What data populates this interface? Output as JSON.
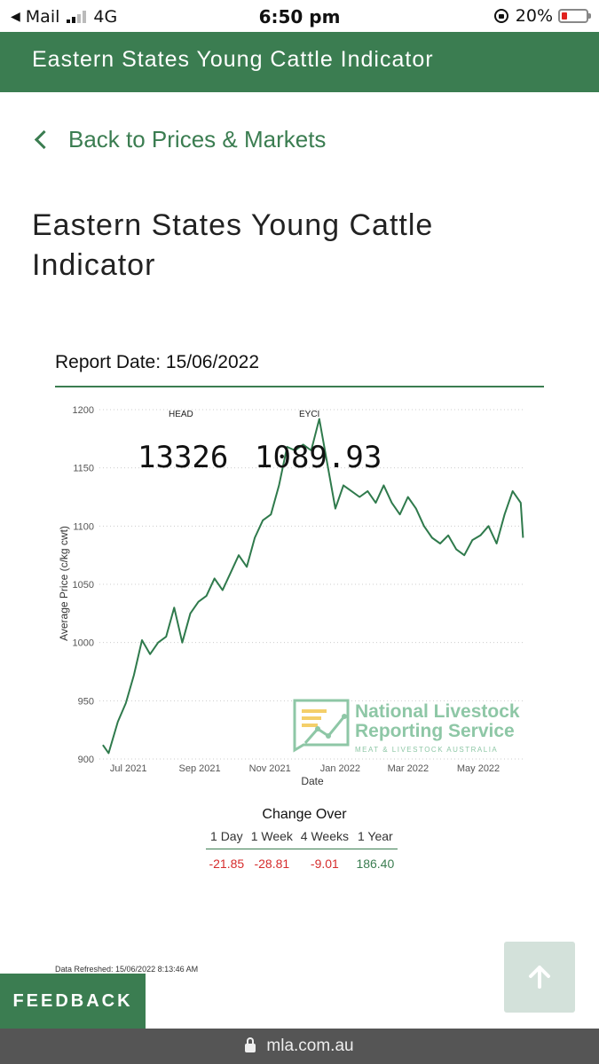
{
  "status_bar": {
    "back_app": "Mail",
    "network": "4G",
    "time": "6:50 pm",
    "battery": "20%"
  },
  "header": {
    "title": "Eastern States Young Cattle Indicator"
  },
  "nav": {
    "back_label": "Back to Prices & Markets"
  },
  "page": {
    "title": "Eastern States Young Cattle Indicator",
    "report_date": "Report Date: 15/06/2022"
  },
  "kpi": {
    "head_label": "HEAD",
    "head_value": "13326",
    "eyci_label": "EYCI",
    "eyci_value": "1089.93"
  },
  "watermark": {
    "line1": "National Livestock",
    "line2": "Reporting Service",
    "line3": "MEAT & LIVESTOCK AUSTRALIA"
  },
  "chart_data": {
    "type": "line",
    "xlabel": "Date",
    "ylabel": "Average Price (c/kg cwt)",
    "ylim": [
      900,
      1200
    ],
    "yticks": [
      900,
      950,
      1000,
      1050,
      1100,
      1150,
      1200
    ],
    "xticks": [
      "Jul 2021",
      "Sep 2021",
      "Nov 2021",
      "Jan 2022",
      "Mar 2022",
      "May 2022"
    ],
    "grid": true,
    "series": [
      {
        "x": [
          "2021-06-15",
          "2021-06-20",
          "2021-06-28",
          "2021-07-05",
          "2021-07-12",
          "2021-07-19",
          "2021-07-26",
          "2021-08-02",
          "2021-08-09",
          "2021-08-16",
          "2021-08-23",
          "2021-08-30",
          "2021-09-06",
          "2021-09-13",
          "2021-09-20",
          "2021-09-27",
          "2021-10-04",
          "2021-10-11",
          "2021-10-18",
          "2021-10-25",
          "2021-11-01",
          "2021-11-08",
          "2021-11-15",
          "2021-11-22",
          "2021-11-29",
          "2021-12-06",
          "2021-12-13",
          "2021-12-20",
          "2022-01-03",
          "2022-01-10",
          "2022-01-17",
          "2022-01-24",
          "2022-01-31",
          "2022-02-07",
          "2022-02-14",
          "2022-02-21",
          "2022-02-28",
          "2022-03-07",
          "2022-03-14",
          "2022-03-21",
          "2022-03-28",
          "2022-04-04",
          "2022-04-11",
          "2022-04-18",
          "2022-04-25",
          "2022-05-02",
          "2022-05-09",
          "2022-05-16",
          "2022-05-23",
          "2022-05-30",
          "2022-06-06",
          "2022-06-13",
          "2022-06-15"
        ],
        "values": [
          912,
          905,
          932,
          948,
          972,
          1002,
          990,
          1000,
          1005,
          1030,
          1000,
          1025,
          1035,
          1040,
          1055,
          1045,
          1060,
          1075,
          1065,
          1090,
          1105,
          1110,
          1135,
          1168,
          1165,
          1170,
          1165,
          1192,
          1115,
          1135,
          1130,
          1125,
          1130,
          1120,
          1135,
          1120,
          1110,
          1125,
          1115,
          1100,
          1090,
          1085,
          1092,
          1080,
          1075,
          1088,
          1092,
          1100,
          1085,
          1110,
          1130,
          1120,
          1090
        ]
      }
    ]
  },
  "change": {
    "title": "Change Over",
    "headers": [
      "1 Day",
      "1 Week",
      "4 Weeks",
      "1 Year"
    ],
    "values": [
      "-21.85",
      "-28.81",
      "-9.01",
      "186.40"
    ]
  },
  "footer": {
    "refreshed": "Data Refreshed: 15/06/2022 8:13:46 AM",
    "feedback": "FEEDBACK",
    "url": "mla.com.au"
  },
  "colors": {
    "brand_green": "#3b7d51",
    "line": "#2f7a4c",
    "negative": "#d62d2d"
  }
}
